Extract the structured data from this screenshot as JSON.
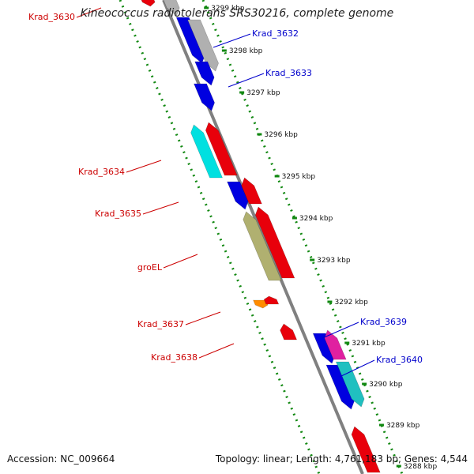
{
  "title": "Kineococcus radiotolerans SRS30216, complete genome",
  "accession_text": "Accession: NC_009664",
  "summary_text": "Topology: linear; Length: 4,761,183 bp; Genes: 4,544",
  "colors": {
    "forward": "#e8000b",
    "reverse": "#0000e0",
    "label_left": "#cc0000",
    "label_right": "#0000cc",
    "grid": "#118811",
    "backbone": "#808080"
  },
  "ticks": [
    {
      "label": "3299 kbp"
    },
    {
      "label": "3298 kbp"
    },
    {
      "label": "3297 kbp"
    },
    {
      "label": "3296 kbp"
    },
    {
      "label": "3295 kbp"
    },
    {
      "label": "3294 kbp"
    },
    {
      "label": "3293 kbp"
    },
    {
      "label": "3292 kbp"
    },
    {
      "label": "3291 kbp"
    },
    {
      "label": "3290 kbp"
    },
    {
      "label": "3289 kbp"
    },
    {
      "label": "3288 kbp"
    }
  ],
  "gene_labels": [
    {
      "text": "Krad_3630",
      "side": "left"
    },
    {
      "text": "Krad_3632",
      "side": "right"
    },
    {
      "text": "Krad_3633",
      "side": "right"
    },
    {
      "text": "Krad_3634",
      "side": "left"
    },
    {
      "text": "Krad_3635",
      "side": "left"
    },
    {
      "text": "groEL",
      "side": "left"
    },
    {
      "text": "Krad_3637",
      "side": "left"
    },
    {
      "text": "Krad_3638",
      "side": "left"
    },
    {
      "text": "Krad_3639",
      "side": "right"
    },
    {
      "text": "Krad_3640",
      "side": "right"
    }
  ],
  "genes": [
    {
      "color": "#e8000b"
    },
    {
      "color": "#b0b0b0"
    },
    {
      "color": "#0000e0"
    },
    {
      "color": "#b0b0b0"
    },
    {
      "color": "#0000e0"
    },
    {
      "color": "#0000e0"
    },
    {
      "color": "#00e0e0"
    },
    {
      "color": "#e8000b"
    },
    {
      "color": "#0000e0"
    },
    {
      "color": "#e8000b"
    },
    {
      "color": "#b0b070"
    },
    {
      "color": "#e8000b"
    },
    {
      "color": "#ff8c00"
    },
    {
      "color": "#e8000b"
    },
    {
      "color": "#e8000b"
    },
    {
      "color": "#0000e0"
    },
    {
      "color": "#e020a0"
    },
    {
      "color": "#0000e0"
    },
    {
      "color": "#20c0c0"
    },
    {
      "color": "#e8000b"
    }
  ]
}
